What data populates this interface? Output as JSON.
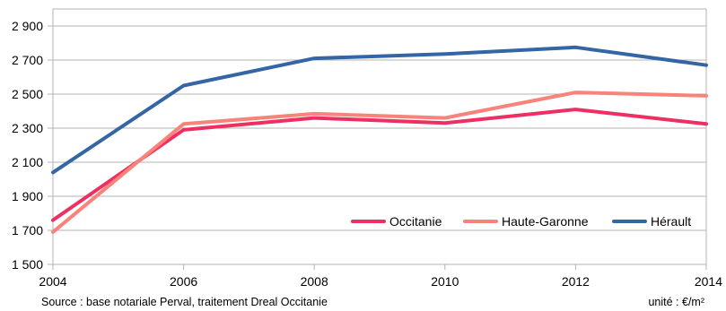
{
  "chart_data": {
    "type": "line",
    "x": [
      2004,
      2006,
      2008,
      2010,
      2012,
      2014
    ],
    "x_ticks": [
      "2004",
      "2006",
      "2008",
      "2010",
      "2012",
      "2014"
    ],
    "ylim": [
      1500,
      3000
    ],
    "y_ticks": [
      1500,
      1700,
      1900,
      2100,
      2300,
      2500,
      2700,
      2900
    ],
    "y_tick_labels": [
      "1 500",
      "1 700",
      "1 900",
      "2 100",
      "2 300",
      "2 500",
      "2 700",
      "2 900"
    ],
    "grid": "horizontal",
    "legend_position": "bottom-right",
    "series": [
      {
        "name": "Occitanie",
        "color": "#ee2f63",
        "values": [
          1760,
          2290,
          2360,
          2330,
          2410,
          2325
        ]
      },
      {
        "name": "Haute-Garonne",
        "color": "#f7837b",
        "values": [
          1690,
          2325,
          2385,
          2360,
          2510,
          2490
        ]
      },
      {
        "name": "Hérault",
        "color": "#3465a4",
        "values": [
          2040,
          2550,
          2710,
          2735,
          2775,
          2670
        ]
      }
    ]
  },
  "footer": {
    "source": "Source : base notariale Perval, traitement Dreal Occitanie",
    "unit": "unité : €/m²"
  }
}
